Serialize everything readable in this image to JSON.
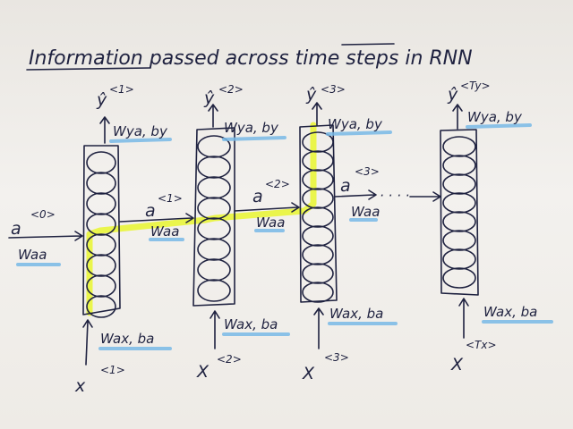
{
  "title": "Information passed across time steps in RNN",
  "cells": [
    {
      "y_hat": "ŷ",
      "y_sup": "<1>",
      "out_w": "Wya, by",
      "in_w": "Wax, ba",
      "x": "x",
      "x_sup": "<1>"
    },
    {
      "y_hat": "ŷ",
      "y_sup": "<2>",
      "out_w": "Wya, by",
      "in_w": "Wax, ba",
      "x": "X",
      "x_sup": "<2>"
    },
    {
      "y_hat": "ŷ",
      "y_sup": "<3>",
      "out_w": "Wya, by",
      "in_w": "Wax, ba",
      "x": "X",
      "x_sup": "<3>"
    },
    {
      "y_hat": "ŷ",
      "y_sup": "<Ty>",
      "out_w": "Wya, by",
      "in_w": "Wax, ba",
      "x": "X",
      "x_sup": "<Tx>"
    }
  ],
  "activations": [
    {
      "a": "a",
      "a_sup": "<0>",
      "w": "Waa"
    },
    {
      "a": "a",
      "a_sup": "<1>",
      "w": "Waa"
    },
    {
      "a": "a",
      "a_sup": "<2>",
      "w": "Waa"
    },
    {
      "a": "a",
      "a_sup": "<3>",
      "w": "Waa"
    }
  ],
  "ellipsis": "· · · ·",
  "colors": {
    "ink": "#1f2240",
    "highlight": "#e9f53a",
    "underline": "#78b8e6"
  }
}
